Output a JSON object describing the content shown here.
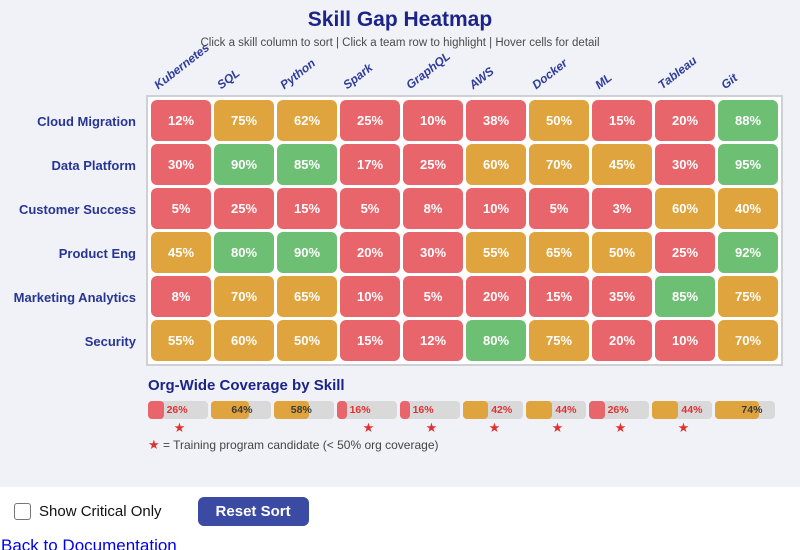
{
  "header": {
    "title": "Skill Gap Heatmap",
    "subtitle": "Click a skill column to sort | Click a team row to highlight | Hover cells for detail"
  },
  "chart_data": {
    "type": "heatmap",
    "columns": [
      "Kubernetes",
      "SQL",
      "Python",
      "Spark",
      "GraphQL",
      "AWS",
      "Docker",
      "ML",
      "Tableau",
      "Git"
    ],
    "rows": [
      "Cloud Migration",
      "Data Platform",
      "Customer Success",
      "Product Eng",
      "Marketing Analytics",
      "Security"
    ],
    "values": [
      [
        12,
        75,
        62,
        25,
        10,
        38,
        50,
        15,
        20,
        88
      ],
      [
        30,
        90,
        85,
        17,
        25,
        60,
        70,
        45,
        30,
        95
      ],
      [
        5,
        25,
        15,
        5,
        8,
        10,
        5,
        3,
        60,
        40
      ],
      [
        45,
        80,
        90,
        20,
        30,
        55,
        65,
        50,
        25,
        92
      ],
      [
        8,
        70,
        65,
        10,
        5,
        20,
        15,
        35,
        85,
        75
      ],
      [
        55,
        60,
        50,
        15,
        12,
        80,
        75,
        20,
        10,
        70
      ]
    ],
    "value_suffix": "%",
    "color_scale": {
      "red_max": 39,
      "orange_max": 79,
      "red": "#e8656b",
      "orange": "#dfa43e",
      "green": "#6dbf73"
    },
    "coverage": {
      "title": "Org-Wide Coverage by Skill",
      "values": [
        26,
        64,
        58,
        16,
        16,
        42,
        44,
        26,
        44,
        74
      ],
      "star_threshold": 50,
      "legend_star": "★",
      "legend_text": "= Training program candidate (< 50% org coverage)",
      "label_color_low": "#e03131",
      "label_color_high": "#3a3a3a",
      "track_color": "#d9d9d9"
    }
  },
  "controls": {
    "checkbox_label": "Show Critical Only",
    "checkbox_checked": false,
    "reset_button_label": "Reset Sort"
  },
  "footer": {
    "link_label": "Back to Documentation"
  }
}
